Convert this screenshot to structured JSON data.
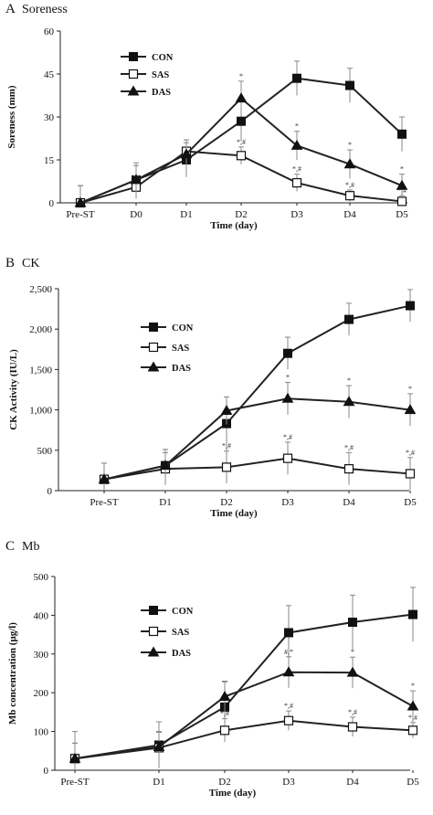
{
  "chart_data": [
    {
      "type": "line",
      "panel_letter": "A",
      "title": "Soreness",
      "xlabel": "Time (day)",
      "ylabel": "Soreness (mm)",
      "categories": [
        "Pre-ST",
        "D0",
        "D1",
        "D2",
        "D3",
        "D4",
        "D5"
      ],
      "ylim": [
        0,
        60
      ],
      "yticks": [
        0,
        15,
        30,
        45,
        60
      ],
      "ytick_labels": [
        "0",
        "15",
        "30",
        "45",
        "60"
      ],
      "legend_position": "top-left",
      "series": [
        {
          "name": "CON",
          "marker": "square-filled",
          "values": [
            0,
            8,
            15,
            28.5,
            43.5,
            41,
            24
          ],
          "errors": [
            6,
            6,
            6,
            7,
            6,
            6,
            6
          ],
          "annotations": [
            "",
            "",
            "",
            "",
            "",
            "",
            ""
          ]
        },
        {
          "name": "SAS",
          "marker": "square-open",
          "values": [
            0,
            5.5,
            18,
            16.5,
            7,
            2.5,
            0.5
          ],
          "errors": [
            6,
            4,
            4,
            3,
            3,
            2,
            2
          ],
          "annotations": [
            "",
            "",
            "",
            "*,#",
            "*,#",
            "*,#",
            "*,#"
          ]
        },
        {
          "name": "DAS",
          "marker": "triangle-filled",
          "values": [
            0,
            8,
            17,
            36.5,
            20,
            13.5,
            6
          ],
          "errors": [
            6,
            5,
            5,
            6,
            5,
            5,
            4
          ],
          "annotations": [
            "",
            "",
            "",
            "*",
            "*",
            "*",
            "*"
          ]
        }
      ]
    },
    {
      "type": "line",
      "panel_letter": "B",
      "title": "CK",
      "xlabel": "Time (day)",
      "ylabel": "CK Activity (IU/L)",
      "categories": [
        "Pre-ST",
        "D1",
        "D2",
        "D3",
        "D4",
        "D5"
      ],
      "ylim": [
        0,
        2500
      ],
      "yticks": [
        0,
        500,
        1000,
        1500,
        2000,
        2500
      ],
      "ytick_labels": [
        "0",
        "500",
        "1,000",
        "1,500",
        "2,000",
        "2,500"
      ],
      "legend_position": "top-left",
      "series": [
        {
          "name": "CON",
          "marker": "square-filled",
          "values": [
            140,
            310,
            830,
            1700,
            2120,
            2290
          ],
          "errors": [
            200,
            200,
            330,
            200,
            200,
            200
          ],
          "annotations": [
            "",
            "",
            "",
            "",
            "",
            ""
          ]
        },
        {
          "name": "SAS",
          "marker": "square-open",
          "values": [
            140,
            270,
            290,
            400,
            270,
            210
          ],
          "errors": [
            200,
            200,
            200,
            200,
            200,
            200
          ],
          "annotations": [
            "",
            "",
            "*,#",
            "*,#",
            "*,#",
            "*,#"
          ]
        },
        {
          "name": "DAS",
          "marker": "triangle-filled",
          "values": [
            140,
            310,
            990,
            1140,
            1100,
            1000
          ],
          "errors": [
            200,
            200,
            170,
            200,
            200,
            200
          ],
          "annotations": [
            "",
            "",
            "",
            "*",
            "*",
            "*"
          ]
        }
      ]
    },
    {
      "type": "line",
      "panel_letter": "C",
      "title": "Mb",
      "xlabel": "Time (day)",
      "ylabel": "Mb concentration (μg/l)",
      "categories": [
        "Pre-ST",
        "D1",
        "D2",
        "D3",
        "D4",
        "D5"
      ],
      "ylim": [
        0,
        500
      ],
      "yticks": [
        0,
        100,
        200,
        300,
        400,
        500
      ],
      "ytick_labels": [
        "0",
        "100",
        "200",
        "300",
        "400",
        "500"
      ],
      "legend_position": "top-left",
      "series": [
        {
          "name": "CON",
          "marker": "square-filled",
          "values": [
            30,
            65,
            163,
            355,
            382,
            402
          ],
          "errors": [
            70,
            60,
            65,
            70,
            70,
            70
          ],
          "annotations": [
            "",
            "",
            "",
            "",
            "",
            ""
          ]
        },
        {
          "name": "SAS",
          "marker": "square-open",
          "values": [
            30,
            58,
            103,
            128,
            112,
            103
          ],
          "errors": [
            40,
            40,
            30,
            25,
            25,
            20
          ],
          "annotations": [
            "",
            "",
            "*,#",
            "*,#",
            "*,#",
            "*,#"
          ]
        },
        {
          "name": "DAS",
          "marker": "triangle-filled",
          "values": [
            30,
            60,
            190,
            253,
            252,
            165
          ],
          "errors": [
            40,
            40,
            40,
            40,
            40,
            40
          ],
          "annotations": [
            "",
            "",
            "",
            "#,*",
            "*",
            "*"
          ]
        }
      ]
    }
  ]
}
